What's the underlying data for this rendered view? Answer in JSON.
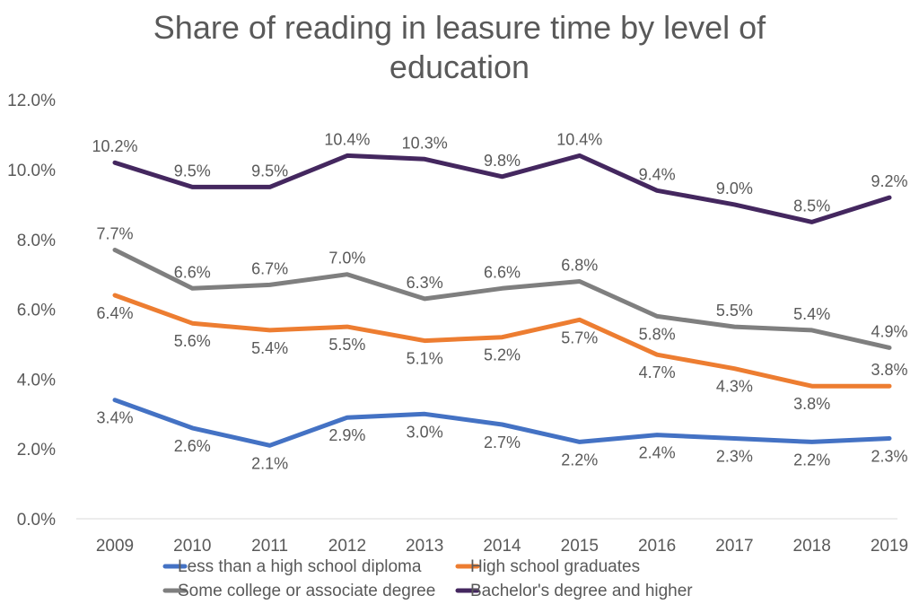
{
  "chart_data": {
    "type": "line",
    "title": [
      "Share of reading in leasure time by level of",
      "education"
    ],
    "categories": [
      "2009",
      "2010",
      "2011",
      "2012",
      "2013",
      "2014",
      "2015",
      "2016",
      "2017",
      "2018",
      "2019"
    ],
    "ylim": [
      0,
      12
    ],
    "yticks": [
      "0.0%",
      "2.0%",
      "4.0%",
      "6.0%",
      "8.0%",
      "10.0%",
      "12.0%"
    ],
    "grid": false,
    "legend_position": "bottom",
    "series": [
      {
        "name": "Less than a high school diploma",
        "color": "#4472C4",
        "values": [
          3.4,
          2.6,
          2.1,
          2.9,
          3.0,
          2.7,
          2.2,
          2.4,
          2.3,
          2.2,
          2.3
        ],
        "labels": [
          "3.4%",
          "2.6%",
          "2.1%",
          "2.9%",
          "3.0%",
          "2.7%",
          "2.2%",
          "2.4%",
          "2.3%",
          "2.2%",
          "2.3%"
        ]
      },
      {
        "name": "High school graduates",
        "color": "#ED7D31",
        "values": [
          6.4,
          5.6,
          5.4,
          5.5,
          5.1,
          5.2,
          5.7,
          4.7,
          4.3,
          3.8,
          3.8
        ],
        "labels": [
          "6.4%",
          "5.6%",
          "5.4%",
          "5.5%",
          "5.1%",
          "5.2%",
          "5.7%",
          "4.7%",
          "4.3%",
          "3.8%",
          "3.8%"
        ]
      },
      {
        "name": "Some college or associate degree",
        "color": "#7F7F7F",
        "values": [
          7.7,
          6.6,
          6.7,
          7.0,
          6.3,
          6.6,
          6.8,
          5.8,
          5.5,
          5.4,
          4.9
        ],
        "labels": [
          "7.7%",
          "6.6%",
          "6.7%",
          "7.0%",
          "6.3%",
          "6.6%",
          "6.8%",
          "5.8%",
          "5.5%",
          "5.4%",
          "4.9%"
        ]
      },
      {
        "name": "Bachelor's degree and higher",
        "color": "#44275F",
        "values": [
          10.2,
          9.5,
          9.5,
          10.4,
          10.3,
          9.8,
          10.4,
          9.4,
          9.0,
          8.5,
          9.2
        ],
        "labels": [
          "10.2%",
          "9.5%",
          "9.5%",
          "10.4%",
          "10.3%",
          "9.8%",
          "10.4%",
          "9.4%",
          "9.0%",
          "8.5%",
          "9.2%"
        ]
      }
    ]
  }
}
